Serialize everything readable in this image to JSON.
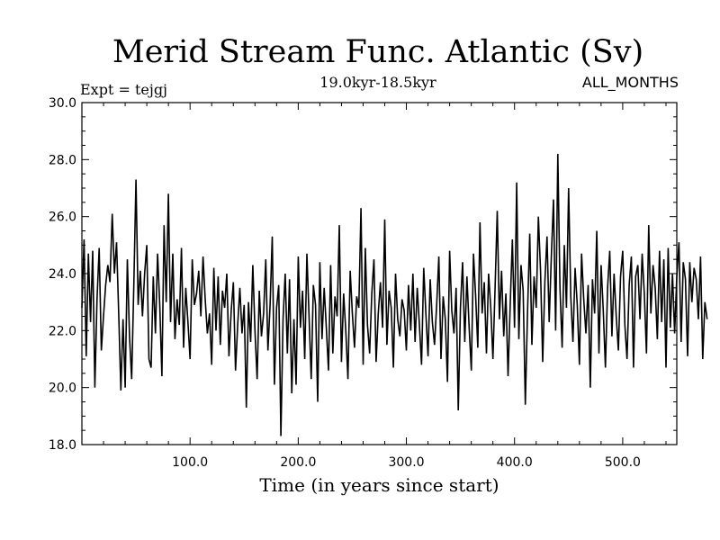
{
  "chart_data": {
    "type": "line",
    "title": "Merid Stream Func. Atlantic (Sv)",
    "subtitle": "19.0kyr-18.5kyr",
    "experiment_label": "Expt = tejgj",
    "months_label": "ALL_MONTHS",
    "xlabel": "Time (in years since start)",
    "ylabel": "",
    "xlim": [
      0,
      550
    ],
    "ylim": [
      18.0,
      30.0
    ],
    "x_ticks": [
      100,
      200,
      300,
      400,
      500
    ],
    "x_tick_labels": [
      "100.0",
      "200.0",
      "300.0",
      "400.0",
      "500.0"
    ],
    "y_ticks": [
      18,
      20,
      22,
      24,
      26,
      28,
      30
    ],
    "y_tick_labels": [
      "18.0",
      "20.0",
      "22.0",
      "24.0",
      "26.0",
      "28.0",
      "30.0"
    ],
    "grid": false,
    "line_color": "#000000",
    "series": [
      {
        "x_start": 0,
        "x_step": 2,
        "values": [
          22.8,
          25.2,
          21.1,
          24.7,
          22.3,
          24.8,
          20.0,
          23.1,
          24.9,
          21.3,
          22.5,
          23.6,
          24.3,
          23.7,
          26.1,
          24.0,
          25.1,
          22.6,
          19.9,
          22.4,
          20.0,
          24.5,
          21.8,
          20.3,
          23.6,
          27.3,
          22.9,
          24.1,
          22.5,
          24.0,
          25.0,
          21.0,
          20.7,
          23.9,
          21.9,
          24.7,
          22.9,
          20.4,
          25.7,
          23.0,
          26.8,
          22.3,
          24.7,
          21.7,
          23.1,
          22.2,
          24.9,
          21.4,
          23.5,
          22.3,
          21.0,
          24.5,
          22.9,
          23.3,
          24.1,
          22.5,
          24.6,
          23.1,
          21.9,
          22.6,
          20.8,
          24.2,
          22.0,
          23.9,
          21.5,
          23.4,
          22.8,
          24.0,
          21.1,
          22.7,
          23.7,
          20.6,
          22.2,
          23.5,
          21.9,
          22.9,
          19.3,
          23.0,
          21.6,
          24.3,
          22.0,
          20.3,
          23.4,
          21.8,
          22.6,
          24.5,
          21.3,
          22.9,
          25.3,
          20.1,
          22.8,
          23.6,
          18.3,
          22.4,
          24.0,
          21.2,
          23.8,
          19.8,
          22.4,
          20.1,
          24.6,
          22.1,
          23.4,
          21.0,
          24.7,
          22.5,
          20.3,
          23.6,
          22.9,
          19.5,
          24.4,
          21.7,
          23.5,
          22.1,
          20.6,
          24.3,
          21.2,
          23.2,
          22.5,
          25.7,
          20.9,
          23.3,
          22.0,
          20.3,
          24.1,
          22.6,
          21.4,
          23.2,
          22.8,
          26.3,
          20.8,
          24.9,
          22.2,
          21.2,
          23.3,
          24.5,
          20.9,
          22.6,
          23.7,
          22.1,
          25.9,
          21.5,
          23.4,
          22.8,
          20.7,
          24.0,
          22.4,
          21.8,
          23.1,
          22.7,
          21.3,
          23.6,
          22.0,
          24.0,
          21.6,
          23.5,
          22.2,
          20.8,
          24.2,
          22.6,
          21.1,
          23.8,
          22.3,
          21.5,
          22.9,
          24.6,
          21.0,
          23.2,
          22.4,
          20.2,
          24.8,
          22.7,
          21.9,
          23.5,
          19.2,
          22.8,
          24.4,
          21.6,
          23.9,
          22.1,
          20.6,
          24.7,
          23.2,
          21.4,
          25.8,
          22.6,
          23.7,
          21.2,
          24.0,
          22.8,
          21.0,
          23.5,
          26.2,
          22.4,
          24.1,
          21.8,
          23.3,
          20.4,
          22.9,
          25.2,
          22.1,
          27.2,
          21.7,
          24.3,
          23.4,
          19.4,
          22.6,
          25.4,
          21.5,
          23.9,
          22.8,
          26.0,
          24.1,
          20.9,
          23.7,
          25.3,
          22.3,
          24.6,
          26.6,
          22.0,
          28.2,
          23.5,
          21.4,
          25.0,
          22.8,
          27.0,
          23.2,
          21.6,
          24.2,
          22.9,
          20.8,
          24.7,
          23.1,
          21.9,
          23.6,
          20.0,
          23.8,
          22.6,
          25.5,
          21.2,
          24.3,
          22.7,
          20.7,
          23.5,
          24.8,
          21.8,
          24.0,
          22.5,
          21.3,
          23.9,
          24.8,
          22.2,
          21.0,
          23.6,
          24.6,
          20.7,
          23.9,
          24.3,
          22.4,
          24.7,
          23.3,
          21.2,
          25.7,
          22.6,
          24.3,
          23.5,
          21.7,
          24.8,
          22.3,
          24.5,
          20.7,
          24.9,
          22.1,
          24.0,
          21.9,
          23.9,
          25.1,
          21.6,
          24.4,
          23.8,
          21.1,
          24.4,
          23.0,
          24.2,
          23.8,
          22.4,
          24.6,
          21.0,
          23.0,
          22.4
        ]
      }
    ]
  }
}
